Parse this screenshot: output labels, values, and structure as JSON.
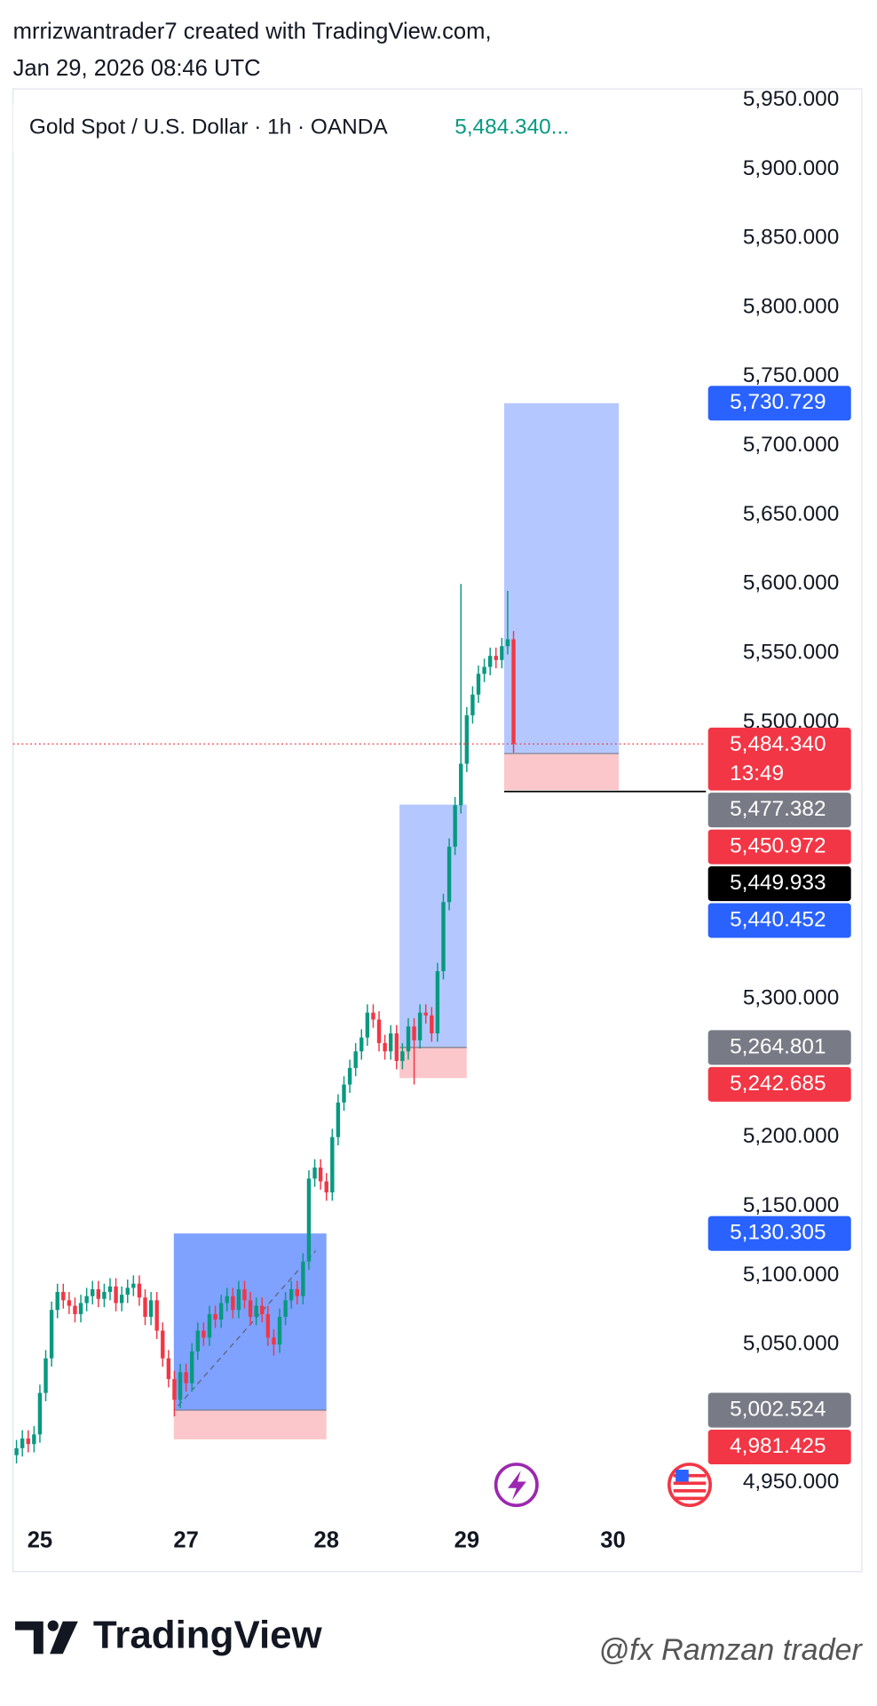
{
  "header": {
    "line1": "mrrizwantrader7 created with TradingView.com,",
    "line2": "Jan 29, 2026 08:46 UTC"
  },
  "chart_data": {
    "type": "candlestick",
    "title": "Gold Spot / U.S. Dollar · 1h · OANDA",
    "legend_price": "5,484.340...",
    "up_color": "#089981",
    "down_color": "#f23645",
    "x": [
      -4,
      -3,
      -2,
      -1,
      0,
      1,
      2,
      3,
      4,
      5,
      6,
      7,
      8,
      9,
      10,
      11,
      12,
      13,
      14,
      15,
      16,
      17,
      18,
      19,
      20,
      21,
      22,
      23,
      24,
      25,
      26,
      27,
      28,
      29,
      30,
      31,
      32,
      33,
      34,
      35,
      36,
      37,
      38,
      39,
      40,
      41,
      42,
      43,
      44,
      45,
      46,
      47,
      48,
      49,
      50,
      51,
      52,
      53,
      54,
      55,
      56,
      57,
      58,
      59,
      60,
      61,
      62,
      63,
      64,
      65,
      66,
      67,
      68,
      69,
      70,
      71,
      72,
      73,
      74,
      75,
      76,
      77,
      78,
      79,
      80,
      81
    ],
    "open": [
      4970,
      4975,
      4982,
      4978,
      4985,
      5015,
      5040,
      5075,
      5088,
      5082,
      5078,
      5072,
      5080,
      5085,
      5090,
      5083,
      5088,
      5092,
      5080,
      5086,
      5091,
      5094,
      5084,
      5070,
      5082,
      5060,
      5040,
      5025,
      5010,
      5030,
      5022,
      5045,
      5060,
      5055,
      5072,
      5068,
      5080,
      5085,
      5075,
      5090,
      5082,
      5070,
      5078,
      5072,
      5055,
      5050,
      5070,
      5082,
      5090,
      5085,
      5110,
      5170,
      5178,
      5168,
      5160,
      5200,
      5225,
      5238,
      5250,
      5262,
      5272,
      5290,
      5285,
      5268,
      5262,
      5275,
      5255,
      5262,
      5280,
      5270,
      5290,
      5288,
      5275,
      5320,
      5370,
      5410,
      5440,
      5470,
      5505,
      5520,
      5535,
      5540,
      5548,
      5545,
      5555,
      5560
    ],
    "high": [
      4981,
      4988,
      4988,
      4991,
      5021,
      5046,
      5081,
      5094,
      5094,
      5088,
      5084,
      5086,
      5091,
      5096,
      5096,
      5094,
      5098,
      5098,
      5092,
      5097,
      5100,
      5100,
      5090,
      5088,
      5088,
      5066,
      5046,
      5031,
      5036,
      5036,
      5051,
      5066,
      5066,
      5078,
      5078,
      5086,
      5091,
      5091,
      5096,
      5096,
      5088,
      5084,
      5084,
      5078,
      5061,
      5076,
      5088,
      5096,
      5096,
      5116,
      5176,
      5184,
      5184,
      5174,
      5206,
      5231,
      5244,
      5256,
      5268,
      5278,
      5296,
      5296,
      5291,
      5274,
      5281,
      5281,
      5268,
      5286,
      5286,
      5296,
      5296,
      5294,
      5326,
      5376,
      5416,
      5446,
      5600,
      5511,
      5526,
      5541,
      5546,
      5554,
      5554,
      5561,
      5595,
      5566
    ],
    "low": [
      4964,
      4969,
      4972,
      4972,
      4979,
      5009,
      5034,
      5069,
      5076,
      5072,
      5066,
      5066,
      5074,
      5079,
      5077,
      5077,
      5082,
      5074,
      5074,
      5080,
      5085,
      5078,
      5064,
      5064,
      5054,
      5034,
      5019,
      4998,
      5004,
      5016,
      5016,
      5039,
      5049,
      5049,
      5062,
      5062,
      5074,
      5069,
      5069,
      5076,
      5064,
      5064,
      5066,
      5049,
      5042,
      5044,
      5064,
      5076,
      5079,
      5079,
      5104,
      5164,
      5162,
      5154,
      5154,
      5194,
      5219,
      5232,
      5244,
      5256,
      5266,
      5279,
      5262,
      5256,
      5256,
      5249,
      5249,
      5256,
      5238,
      5264,
      5282,
      5269,
      5269,
      5314,
      5364,
      5404,
      5434,
      5464,
      5499,
      5514,
      5529,
      5534,
      5539,
      5539,
      5549,
      5478
    ],
    "close": [
      4975,
      4982,
      4978,
      4985,
      5015,
      5040,
      5075,
      5088,
      5082,
      5078,
      5072,
      5080,
      5085,
      5090,
      5083,
      5088,
      5092,
      5080,
      5086,
      5091,
      5094,
      5084,
      5070,
      5082,
      5060,
      5040,
      5025,
      5010,
      5030,
      5022,
      5045,
      5060,
      5055,
      5072,
      5068,
      5080,
      5085,
      5075,
      5090,
      5082,
      5070,
      5078,
      5072,
      5055,
      5050,
      5070,
      5082,
      5090,
      5085,
      5110,
      5170,
      5178,
      5168,
      5160,
      5200,
      5225,
      5238,
      5250,
      5262,
      5272,
      5290,
      5285,
      5268,
      5262,
      5275,
      5255,
      5262,
      5280,
      5270,
      5290,
      5288,
      5275,
      5320,
      5370,
      5410,
      5440,
      5470,
      5505,
      5520,
      5535,
      5540,
      5548,
      5545,
      5555,
      5560,
      5484.34
    ],
    "xlim": [
      -4.6,
      113.9
    ],
    "xticks": [
      {
        "value": 0,
        "label": "25"
      },
      {
        "value": 25,
        "label": "27"
      },
      {
        "value": 49,
        "label": "28"
      },
      {
        "value": 73,
        "label": "29"
      },
      {
        "value": 98,
        "label": "30"
      }
    ],
    "ylim": [
      4925,
      5958
    ],
    "yticks": [
      {
        "value": 5950,
        "label": "5,950.000"
      },
      {
        "value": 5900,
        "label": "5,900.000"
      },
      {
        "value": 5850,
        "label": "5,850.000"
      },
      {
        "value": 5800,
        "label": "5,800.000"
      },
      {
        "value": 5750,
        "label": "5,750.000"
      },
      {
        "value": 5700,
        "label": "5,700.000"
      },
      {
        "value": 5650,
        "label": "5,650.000"
      },
      {
        "value": 5600,
        "label": "5,600.000"
      },
      {
        "value": 5550,
        "label": "5,550.000"
      },
      {
        "value": 5500,
        "label": "5,500.000"
      },
      {
        "value": 5300,
        "label": "5,300.000"
      },
      {
        "value": 5200,
        "label": "5,200.000"
      },
      {
        "value": 5150,
        "label": "5,150.000"
      },
      {
        "value": 5100,
        "label": "5,100.000"
      },
      {
        "value": 5050,
        "label": "5,050.000"
      },
      {
        "value": 4950,
        "label": "4,950.000"
      }
    ],
    "grid": false,
    "last_price": {
      "value": 5484.34,
      "label": "5,484.340",
      "countdown": "13:49",
      "color": "#f23645"
    },
    "positions": [
      {
        "x_start": 22.9,
        "x_end": 49,
        "target": {
          "value": 5130.305,
          "label": "5,130.305"
        },
        "entry": {
          "value": 5002.524,
          "label": "5,002.524"
        },
        "stop": {
          "value": 4981.425,
          "label": "4,981.425"
        }
      },
      {
        "x_start": 61.5,
        "x_end": 73,
        "target": {
          "value": 5440.452,
          "label": "5,440.452"
        },
        "entry": {
          "value": 5264.801,
          "label": "5,264.801"
        },
        "stop": {
          "value": 5242.685,
          "label": "5,242.685"
        }
      },
      {
        "x_start": 79.4,
        "x_end": 99,
        "target": {
          "value": 5730.729,
          "label": "5,730.729"
        },
        "entry": {
          "value": 5477.382,
          "label": "5,477.382"
        },
        "stop": {
          "value": 5450.972,
          "label": "5,450.972"
        }
      }
    ],
    "target_color": "#2962ff",
    "entry_color": "#787b86",
    "stop_color": "#f23645",
    "hline": {
      "value": 5449.933,
      "label": "5,449.933",
      "x_start": 79.4,
      "color": "#000000"
    }
  },
  "footer": {
    "logo": "TradingView",
    "watermark": "@fx Ramzan trader"
  }
}
